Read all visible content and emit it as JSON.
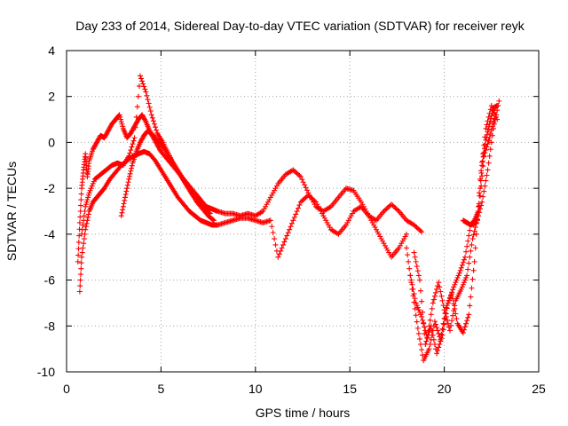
{
  "chart_data": {
    "type": "scatter",
    "title": "Day 233 of 2014, Sidereal Day-to-day VTEC variation (SDTVAR) for receiver reyk",
    "xlabel": "GPS time / hours",
    "ylabel": "SDTVAR / TECUs",
    "xlim": [
      0,
      25
    ],
    "ylim": [
      -10,
      4
    ],
    "xticks": [
      0,
      5,
      10,
      15,
      20,
      25
    ],
    "yticks": [
      -10,
      -8,
      -6,
      -4,
      -2,
      0,
      2,
      4
    ],
    "grid": true,
    "marker": "+",
    "series": [
      {
        "name": "SDTVAR",
        "color": "#ff0000",
        "traces": [
          {
            "x": [
              0.6,
              0.7,
              0.8,
              0.9,
              1.0,
              1.1,
              1.2,
              1.4,
              1.6,
              1.8,
              2.0,
              2.2,
              2.4,
              2.6,
              2.8,
              3.0,
              3.2,
              3.4,
              3.6,
              3.8,
              4.0,
              4.2,
              4.4,
              4.6,
              4.8,
              5.0,
              5.3,
              5.6,
              5.9,
              6.2,
              6.5,
              6.8,
              7.1,
              7.4,
              7.7,
              8.0,
              8.4,
              8.8,
              9.2,
              9.6,
              10.0,
              10.4,
              10.8,
              11.2,
              11.6,
              12.0,
              12.4,
              12.8,
              13.2,
              13.6,
              14.0,
              14.4,
              14.8,
              15.2,
              15.6,
              16.0,
              16.4,
              16.8,
              17.2,
              17.6,
              18.0,
              18.4,
              18.8
            ],
            "y": [
              -5.2,
              -3.5,
              -2.0,
              -1.2,
              -0.5,
              -1.5,
              -0.8,
              -0.3,
              0.0,
              0.3,
              0.2,
              0.5,
              0.8,
              1.0,
              1.2,
              0.6,
              0.2,
              0.4,
              0.7,
              1.0,
              1.2,
              0.9,
              0.5,
              0.2,
              -0.1,
              -0.4,
              -0.7,
              -1.0,
              -1.3,
              -1.6,
              -1.9,
              -2.2,
              -2.5,
              -2.8,
              -2.9,
              -3.0,
              -3.1,
              -3.1,
              -3.2,
              -3.1,
              -3.2,
              -3.0,
              -2.4,
              -1.8,
              -1.4,
              -1.2,
              -1.5,
              -2.2,
              -2.8,
              -3.0,
              -2.8,
              -2.4,
              -2.0,
              -2.1,
              -2.6,
              -3.2,
              -3.4,
              -3.0,
              -2.7,
              -3.0,
              -3.4,
              -3.6,
              -3.9
            ]
          },
          {
            "x": [
              0.7,
              0.8,
              1.0,
              1.2,
              1.4,
              1.6,
              1.8,
              2.0,
              2.3,
              2.6,
              2.9,
              3.2,
              3.5,
              3.8,
              4.1,
              4.4,
              4.7,
              5.0,
              5.3,
              5.6,
              5.9,
              6.2,
              6.5,
              6.8,
              7.1,
              7.4,
              7.7,
              8.0,
              8.4,
              8.8,
              9.2,
              9.6,
              10.0,
              10.4,
              10.8,
              11.2,
              11.6,
              12.0,
              12.4,
              12.8,
              13.2,
              13.6,
              14.0,
              14.4,
              14.8,
              15.2,
              15.6,
              16.0,
              16.4,
              16.8,
              17.2,
              17.6,
              18.0
            ],
            "y": [
              -6.5,
              -5.0,
              -3.8,
              -3.0,
              -2.6,
              -2.4,
              -2.2,
              -2.0,
              -1.6,
              -1.3,
              -1.0,
              -0.8,
              -0.6,
              -0.5,
              -0.4,
              -0.5,
              -0.8,
              -1.2,
              -1.6,
              -2.0,
              -2.4,
              -2.7,
              -3.0,
              -3.2,
              -3.4,
              -3.5,
              -3.6,
              -3.6,
              -3.5,
              -3.4,
              -3.3,
              -3.3,
              -3.4,
              -3.5,
              -3.4,
              -5.0,
              -4.2,
              -3.4,
              -2.6,
              -2.3,
              -2.6,
              -3.2,
              -3.8,
              -4.0,
              -3.6,
              -3.0,
              -2.8,
              -3.2,
              -3.8,
              -4.4,
              -5.0,
              -4.6,
              -4.0
            ]
          },
          {
            "x": [
              0.8,
              1.0,
              1.2,
              1.5,
              1.8,
              2.1,
              2.4,
              2.7,
              3.0,
              3.3,
              3.6,
              3.9,
              4.2,
              4.5,
              4.8,
              5.1,
              5.4,
              5.7,
              6.0,
              6.3,
              6.6,
              6.9,
              7.2,
              7.5,
              7.8
            ],
            "y": [
              -4.0,
              -2.8,
              -2.2,
              -1.6,
              -1.4,
              -1.2,
              -1.0,
              -0.9,
              -1.0,
              -0.6,
              0.2,
              2.9,
              2.2,
              1.2,
              0.4,
              0.0,
              -0.5,
              -1.0,
              -1.4,
              -1.8,
              -2.2,
              -2.6,
              -2.9,
              -3.2,
              -3.4
            ]
          },
          {
            "x": [
              2.9,
              3.1,
              3.3,
              3.5,
              3.7,
              3.9,
              4.1,
              4.3,
              4.6,
              4.9,
              5.2,
              5.5,
              5.8,
              6.1,
              6.4,
              6.7,
              7.0,
              7.3,
              7.6
            ],
            "y": [
              -3.2,
              -2.4,
              -1.6,
              -0.9,
              -0.4,
              0.0,
              0.3,
              0.5,
              0.3,
              0.0,
              -0.3,
              -0.7,
              -1.1,
              -1.5,
              -1.9,
              -2.3,
              -2.6,
              -2.9,
              -3.1
            ]
          },
          {
            "x": [
              18.0,
              18.3,
              18.6,
              18.9,
              19.2,
              19.5,
              19.8,
              20.1,
              20.4,
              20.7,
              21.0,
              21.3,
              21.6,
              21.9,
              22.2,
              22.5,
              22.8
            ],
            "y": [
              -4.6,
              -6.4,
              -8.1,
              -9.5,
              -9.0,
              -7.8,
              -8.6,
              -7.2,
              -6.6,
              -7.9,
              -8.3,
              -7.5,
              -5.2,
              -1.6,
              0.6,
              1.6,
              1.0
            ]
          },
          {
            "x": [
              18.2,
              18.5,
              18.8,
              19.1,
              19.4,
              19.7,
              20.0,
              20.3,
              20.6,
              20.9,
              21.2,
              21.5,
              21.8,
              22.1,
              22.4,
              22.7
            ],
            "y": [
              -5.8,
              -7.0,
              -7.6,
              -8.5,
              -7.0,
              -6.1,
              -7.3,
              -8.2,
              -6.9,
              -6.4,
              -5.8,
              -4.2,
              -3.2,
              -0.6,
              0.2,
              1.2
            ]
          },
          {
            "x": [
              18.4,
              18.7,
              19.0,
              19.3,
              19.6,
              19.9,
              20.2,
              20.5,
              20.8,
              21.1,
              21.4,
              21.7,
              22.0,
              22.3,
              22.6,
              22.9
            ],
            "y": [
              -4.8,
              -6.0,
              -8.8,
              -8.0,
              -9.2,
              -8.4,
              -7.0,
              -6.3,
              -5.7,
              -5.0,
              -3.6,
              -3.5,
              -2.6,
              -1.2,
              0.6,
              1.8
            ]
          },
          {
            "x": [
              21.0,
              21.2,
              21.4,
              21.6,
              21.8,
              22.0,
              22.2,
              22.4,
              22.6,
              22.8
            ],
            "y": [
              -3.4,
              -3.5,
              -3.6,
              -3.4,
              -3.0,
              -1.0,
              0.1,
              0.8,
              1.5,
              1.6
            ]
          }
        ]
      }
    ]
  }
}
